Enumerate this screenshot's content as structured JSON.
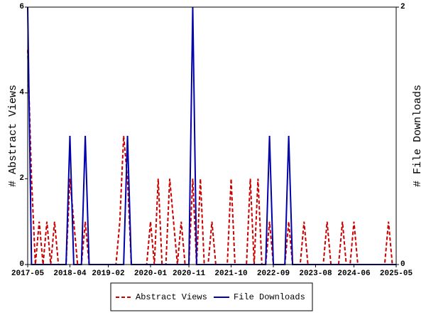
{
  "chart_data": {
    "type": "line",
    "ylabel": "# Abstract Views",
    "y2label": "# File Downloads",
    "x": [
      "2017-05",
      "2017-06",
      "2017-07",
      "2017-08",
      "2017-09",
      "2017-10",
      "2017-11",
      "2017-12",
      "2018-01",
      "2018-02",
      "2018-03",
      "2018-04",
      "2018-05",
      "2018-06",
      "2018-07",
      "2018-08",
      "2018-09",
      "2018-10",
      "2018-11",
      "2018-12",
      "2019-01",
      "2019-02",
      "2019-03",
      "2019-04",
      "2019-05",
      "2019-06",
      "2019-07",
      "2019-08",
      "2019-09",
      "2019-10",
      "2019-11",
      "2019-12",
      "2020-01",
      "2020-02",
      "2020-03",
      "2020-04",
      "2020-05",
      "2020-06",
      "2020-07",
      "2020-08",
      "2020-09",
      "2020-10",
      "2020-11",
      "2020-12",
      "2021-01",
      "2021-02",
      "2021-03",
      "2021-04",
      "2021-05",
      "2021-06",
      "2021-07",
      "2021-08",
      "2021-09",
      "2021-10",
      "2021-11",
      "2021-12",
      "2022-01",
      "2022-02",
      "2022-03",
      "2022-04",
      "2022-05",
      "2022-06",
      "2022-07",
      "2022-08",
      "2022-09",
      "2022-10",
      "2022-11",
      "2022-12",
      "2023-01",
      "2023-02",
      "2023-03",
      "2023-04",
      "2023-05",
      "2023-06",
      "2023-07",
      "2023-08",
      "2023-09",
      "2023-10",
      "2023-11",
      "2023-12",
      "2024-01",
      "2024-02",
      "2024-03",
      "2024-04",
      "2024-05",
      "2024-06",
      "2024-07",
      "2024-08",
      "2024-09",
      "2024-10",
      "2024-11",
      "2024-12",
      "2025-01",
      "2025-02",
      "2025-03",
      "2025-04",
      "2025-05"
    ],
    "xticks": [
      "2017-05",
      "2018-04",
      "2019-02",
      "2020-01",
      "2020-11",
      "2021-10",
      "2022-09",
      "2023-08",
      "2024-06",
      "2025-05"
    ],
    "ylim": [
      0,
      6
    ],
    "yticks": [
      0,
      2,
      4,
      6
    ],
    "y2lim": [
      0,
      2
    ],
    "y2ticks": [
      0,
      2
    ],
    "legend": "bottom",
    "series": [
      {
        "name": "Abstract Views",
        "color": "#cc0000",
        "dash": true,
        "values": [
          5,
          2,
          0,
          1,
          0,
          1,
          0,
          1,
          0,
          0,
          0,
          2,
          1,
          0,
          0,
          1,
          0,
          0,
          0,
          0,
          0,
          0,
          0,
          0,
          1,
          3,
          2,
          0,
          0,
          0,
          0,
          0,
          1,
          0,
          2,
          0,
          0,
          2,
          1,
          0,
          1,
          0,
          0,
          2,
          0,
          2,
          0,
          0,
          1,
          0,
          0,
          0,
          0,
          2,
          0,
          0,
          0,
          0,
          2,
          0,
          2,
          0,
          0,
          1,
          0,
          0,
          0,
          0,
          1,
          0,
          0,
          0,
          1,
          0,
          0,
          0,
          0,
          0,
          1,
          0,
          0,
          0,
          1,
          0,
          0,
          1,
          0,
          0,
          0,
          0,
          0,
          0,
          0,
          0,
          1,
          0,
          0
        ]
      },
      {
        "name": "File Downloads",
        "color": "#0000aa",
        "axis": "y2",
        "values": [
          2,
          0,
          0,
          0,
          0,
          0,
          0,
          0,
          0,
          0,
          0,
          1,
          0,
          0,
          0,
          1,
          0,
          0,
          0,
          0,
          0,
          0,
          0,
          0,
          0,
          0,
          1,
          0,
          0,
          0,
          0,
          0,
          0,
          0,
          0,
          0,
          0,
          0,
          0,
          0,
          0,
          0,
          0,
          2,
          0,
          0,
          0,
          0,
          0,
          0,
          0,
          0,
          0,
          0,
          0,
          0,
          0,
          0,
          0,
          0,
          0,
          0,
          0,
          1,
          0,
          0,
          0,
          0,
          1,
          0,
          0,
          0,
          0,
          0,
          0,
          0,
          0,
          0,
          0,
          0,
          0,
          0,
          0,
          0,
          0,
          0,
          0,
          0,
          0,
          0,
          0,
          0,
          0,
          0,
          0,
          0,
          0
        ]
      }
    ]
  }
}
